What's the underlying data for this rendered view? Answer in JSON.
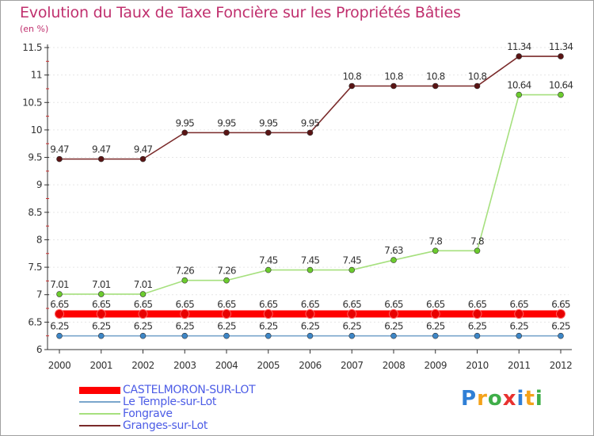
{
  "chart_data": {
    "type": "line",
    "title": "Evolution du Taux de Taxe Foncière sur les Propriétés Bâties",
    "ylabel": "(en %)",
    "xlabel": "",
    "ylim": [
      6,
      11.5
    ],
    "yticks": [
      "6",
      "6.5",
      "7",
      "7.5",
      "8",
      "8.5",
      "9",
      "9.5",
      "10",
      "10.5",
      "11",
      "11.5"
    ],
    "categories": [
      "2000",
      "2001",
      "2002",
      "2003",
      "2004",
      "2005",
      "2006",
      "2007",
      "2008",
      "2009",
      "2010",
      "2011",
      "2012"
    ],
    "series": [
      {
        "name": "CASTELMORON-SUR-LOT",
        "color": "#ff0000",
        "marker_color": "#e80000",
        "width": "thick",
        "values": [
          6.65,
          6.65,
          6.65,
          6.65,
          6.65,
          6.65,
          6.65,
          6.65,
          6.65,
          6.65,
          6.65,
          6.65,
          6.65
        ],
        "labels": [
          "6.65",
          "6.65",
          "6.65",
          "6.65",
          "6.65",
          "6.65",
          "6.65",
          "6.65",
          "6.65",
          "6.65",
          "6.65",
          "6.65",
          "6.65"
        ]
      },
      {
        "name": "Le Temple-sur-Lot",
        "color": "#7aa6cc",
        "marker_color": "#3d86c6",
        "width": "thin",
        "values": [
          6.25,
          6.25,
          6.25,
          6.25,
          6.25,
          6.25,
          6.25,
          6.25,
          6.25,
          6.25,
          6.25,
          6.25,
          6.25
        ],
        "labels": [
          "6.25",
          "6.25",
          "6.25",
          "6.25",
          "6.25",
          "6.25",
          "6.25",
          "6.25",
          "6.25",
          "6.25",
          "6.25",
          "6.25",
          "6.25"
        ]
      },
      {
        "name": "Fongrave",
        "color": "#a6e07e",
        "marker_color": "#6ccc2e",
        "width": "thin",
        "values": [
          7.01,
          7.01,
          7.01,
          7.26,
          7.26,
          7.45,
          7.45,
          7.45,
          7.63,
          7.8,
          7.8,
          10.64,
          10.64
        ],
        "labels": [
          "7.01",
          "7.01",
          "7.01",
          "7.26",
          "7.26",
          "7.45",
          "7.45",
          "7.45",
          "7.63",
          "7.8",
          "7.8",
          "10.64",
          "10.64"
        ]
      },
      {
        "name": "Granges-sur-Lot",
        "color": "#7a2a2a",
        "marker_color": "#5a1414",
        "width": "thin",
        "values": [
          9.47,
          9.47,
          9.47,
          9.95,
          9.95,
          9.95,
          9.95,
          10.8,
          10.8,
          10.8,
          10.8,
          11.34,
          11.34
        ],
        "labels": [
          "9.47",
          "9.47",
          "9.47",
          "9.95",
          "9.95",
          "9.95",
          "9.95",
          "10.8",
          "10.8",
          "10.8",
          "10.8",
          "11.34",
          "11.34"
        ]
      }
    ],
    "legend_position": "bottom-left"
  },
  "brand": {
    "letters": [
      "P",
      "r",
      "o",
      "x",
      "i",
      "t",
      "i"
    ],
    "colors": [
      "#2f7fd6",
      "#f4a21a",
      "#3fae49",
      "#e8312f",
      "#2f7fd6",
      "#f4a21a",
      "#3fae49"
    ]
  }
}
